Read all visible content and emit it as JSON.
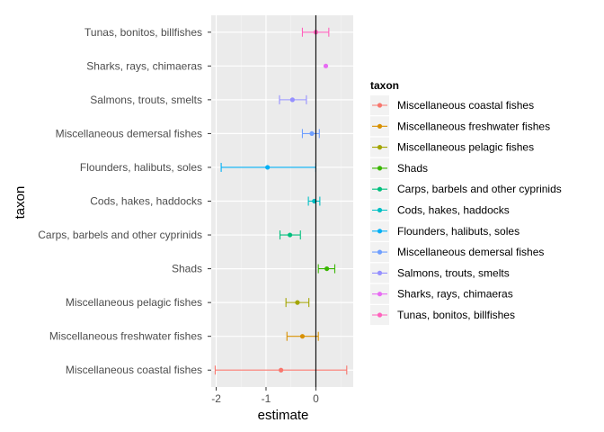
{
  "chart_data": {
    "type": "scatter",
    "subtype": "point-range with horizontal error bars",
    "title": "",
    "xlabel": "estimate",
    "ylabel": "taxon",
    "xlim": [
      -2.1,
      0.75
    ],
    "xticks": [
      -2,
      -1,
      0
    ],
    "xtick_labels": [
      "-2",
      "-1",
      "0"
    ],
    "reference_line_x": 0,
    "grid": true,
    "legend_title": "taxon",
    "legend_position": "right",
    "categories": [
      "Miscellaneous coastal fishes",
      "Miscellaneous freshwater fishes",
      "Miscellaneous pelagic fishes",
      "Shads",
      "Carps, barbels and other cyprinids",
      "Cods, hakes, haddocks",
      "Flounders, halibuts, soles",
      "Miscellaneous demersal fishes",
      "Salmons, trouts, smelts",
      "Sharks, rays, chimaeras",
      "Tunas, bonitos, billfishes"
    ],
    "series": [
      {
        "name": "Miscellaneous coastal fishes",
        "estimate": -0.7,
        "lower": -2.02,
        "upper": 0.62,
        "color": "#F8766D"
      },
      {
        "name": "Miscellaneous freshwater fishes",
        "estimate": -0.27,
        "lower": -0.58,
        "upper": 0.05,
        "color": "#D89000"
      },
      {
        "name": "Miscellaneous pelagic fishes",
        "estimate": -0.37,
        "lower": -0.6,
        "upper": -0.14,
        "color": "#A3A500"
      },
      {
        "name": "Shads",
        "estimate": 0.22,
        "lower": 0.05,
        "upper": 0.38,
        "color": "#39B600"
      },
      {
        "name": "Carps, barbels and other cyprinids",
        "estimate": -0.52,
        "lower": -0.72,
        "upper": -0.31,
        "color": "#00BF7D"
      },
      {
        "name": "Cods, hakes, haddocks",
        "estimate": -0.03,
        "lower": -0.15,
        "upper": 0.08,
        "color": "#00BFC4"
      },
      {
        "name": "Flounders, halibuts, soles",
        "estimate": -0.97,
        "lower": -1.9,
        "upper": 0.0,
        "color": "#00B0F6"
      },
      {
        "name": "Miscellaneous demersal fishes",
        "estimate": -0.08,
        "lower": -0.27,
        "upper": 0.07,
        "color": "#6F9FFF"
      },
      {
        "name": "Salmons, trouts, smelts",
        "estimate": -0.47,
        "lower": -0.73,
        "upper": -0.19,
        "color": "#9590FF"
      },
      {
        "name": "Sharks, rays, chimaeras",
        "estimate": 0.2,
        "lower": null,
        "upper": null,
        "color": "#E76BF3"
      },
      {
        "name": "Tunas, bonitos, billfishes",
        "estimate": 0.0,
        "lower": -0.27,
        "upper": 0.26,
        "color": "#FF62BC"
      }
    ]
  }
}
